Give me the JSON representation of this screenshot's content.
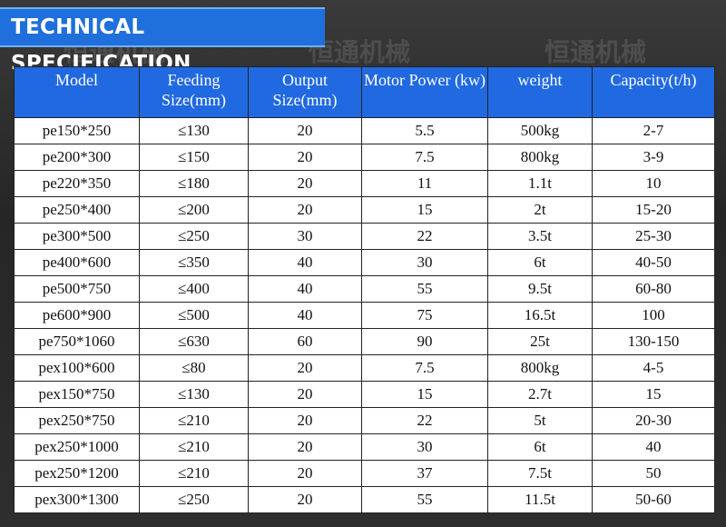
{
  "header": {
    "title": "TECHNICAL SPECIFICATION",
    "watermark": "恒通机械"
  },
  "table": {
    "columns": [
      "Model",
      "Feeding Size(mm)",
      "Output Size(mm)",
      "Motor Power (kw)",
      "weight",
      "Capacity(t/h)"
    ],
    "rows": [
      [
        "pe150*250",
        "≤130",
        "20",
        "5.5",
        "500kg",
        "2-7"
      ],
      [
        "pe200*300",
        "≤150",
        "20",
        "7.5",
        "800kg",
        "3-9"
      ],
      [
        "pe220*350",
        "≤180",
        "20",
        "11",
        "1.1t",
        "10"
      ],
      [
        "pe250*400",
        "≤200",
        "20",
        "15",
        "2t",
        "15-20"
      ],
      [
        "pe300*500",
        "≤250",
        "30",
        "22",
        "3.5t",
        "25-30"
      ],
      [
        "pe400*600",
        "≤350",
        "40",
        "30",
        "6t",
        "40-50"
      ],
      [
        "pe500*750",
        "≤400",
        "40",
        "55",
        "9.5t",
        "60-80"
      ],
      [
        "pe600*900",
        "≤500",
        "40",
        "75",
        "16.5t",
        "100"
      ],
      [
        "pe750*1060",
        "≤630",
        "60",
        "90",
        "25t",
        "130-150"
      ],
      [
        "pex100*600",
        "≤80",
        "20",
        "7.5",
        "800kg",
        "4-5"
      ],
      [
        "pex150*750",
        "≤130",
        "20",
        "15",
        "2.7t",
        "15"
      ],
      [
        "pex250*750",
        "≤210",
        "20",
        "22",
        "5t",
        "20-30"
      ],
      [
        "pex250*1000",
        "≤210",
        "20",
        "30",
        "6t",
        "40"
      ],
      [
        "pex250*1200",
        "≤210",
        "20",
        "37",
        "7.5t",
        "50"
      ],
      [
        "pex300*1300",
        "≤250",
        "20",
        "55",
        "11.5t",
        "50-60"
      ]
    ]
  }
}
